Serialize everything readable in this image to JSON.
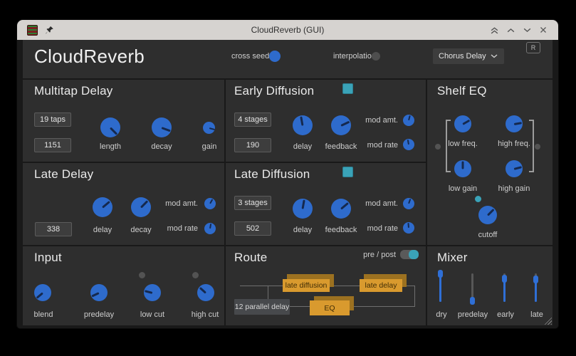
{
  "window": {
    "title": "CloudReverb (GUI)"
  },
  "header": {
    "app_title": "CloudReverb",
    "cross_seed_label": "cross seed",
    "interpolation_label": "interpolation",
    "preset_value": "Chorus Delay",
    "reset_button": "R"
  },
  "multitap": {
    "title": "Multitap Delay",
    "taps_button": "19 taps",
    "seed_value": "1151",
    "knobs": [
      {
        "label": "length",
        "angle": 45
      },
      {
        "label": "decay",
        "angle": 20
      },
      {
        "label": "gain",
        "angle": 15
      }
    ]
  },
  "early_diffusion": {
    "title": "Early Diffusion",
    "stages_button": "4 stages",
    "seed_value": "190",
    "knobs": [
      {
        "label": "delay",
        "angle": -100
      },
      {
        "label": "feedback",
        "angle": -25
      }
    ],
    "mod": [
      {
        "label": "mod amt.",
        "angle": -75
      },
      {
        "label": "mod rate",
        "angle": -100
      }
    ]
  },
  "late_delay": {
    "title": "Late Delay",
    "seed_value": "338",
    "knobs": [
      {
        "label": "delay",
        "angle": -40
      },
      {
        "label": "decay",
        "angle": -45
      }
    ],
    "mod": [
      {
        "label": "mod amt.",
        "angle": -60
      },
      {
        "label": "mod rate",
        "angle": -80
      }
    ]
  },
  "late_diffusion": {
    "title": "Late Diffusion",
    "stages_button": "3 stages",
    "seed_value": "502",
    "knobs": [
      {
        "label": "delay",
        "angle": -80
      },
      {
        "label": "feedback",
        "angle": -40
      }
    ],
    "mod": [
      {
        "label": "mod amt.",
        "angle": -70
      },
      {
        "label": "mod rate",
        "angle": -95
      }
    ]
  },
  "shelf_eq": {
    "title": "Shelf EQ",
    "knobs": [
      {
        "label": "low freq.",
        "angle": -30
      },
      {
        "label": "high freq.",
        "angle": -10
      },
      {
        "label": "low gain",
        "angle": -90
      },
      {
        "label": "high gain",
        "angle": -15
      },
      {
        "label": "cutoff",
        "angle": -45
      }
    ]
  },
  "input": {
    "title": "Input",
    "knobs": [
      {
        "label": "blend",
        "angle": 140
      },
      {
        "label": "predelay",
        "angle": 155
      },
      {
        "label": "low cut",
        "angle": 195
      },
      {
        "label": "high cut",
        "angle": 222
      }
    ]
  },
  "route": {
    "title": "Route",
    "toggle_label": "pre / post",
    "nodes": {
      "late_diffusion": "late diffusion",
      "late_delay": "late delay",
      "eq": "EQ",
      "parallel_delay": "12 parallel delay"
    }
  },
  "mixer": {
    "title": "Mixer",
    "sliders": [
      {
        "label": "dry",
        "value_pct": 0
      },
      {
        "label": "predelay",
        "value_pct": 95
      },
      {
        "label": "early",
        "value_pct": 17
      },
      {
        "label": "late",
        "value_pct": 20
      }
    ]
  },
  "colors": {
    "knob_blue": "#2e6bcc",
    "teal_accent": "#3aa3b8",
    "route_orange": "#d99a2e"
  }
}
